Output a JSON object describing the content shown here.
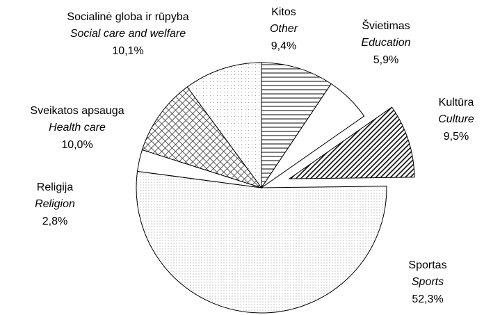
{
  "chart_data": {
    "type": "pie",
    "categories": [
      "Kitos",
      "Švietimas",
      "Kultūra",
      "Sportas",
      "Religija",
      "Sveikatos apsauga",
      "Socialinė globa ir rūpyba"
    ],
    "categories_en": [
      "Other",
      "Education",
      "Culture",
      "Sports",
      "Religion",
      "Health care",
      "Social care and welfare"
    ],
    "values": [
      9.4,
      5.9,
      9.5,
      52.3,
      2.8,
      10.0,
      10.1
    ],
    "value_labels": [
      "9,4%",
      "5,9%",
      "9,5%",
      "52,3%",
      "2,8%",
      "10,0%",
      "10,1%"
    ],
    "patterns": [
      "horizontal",
      "none",
      "diagonal",
      "fine-dots",
      "none",
      "crosshatch",
      "sparse-dots"
    ],
    "explode": [
      false,
      false,
      true,
      false,
      false,
      false,
      false
    ]
  }
}
